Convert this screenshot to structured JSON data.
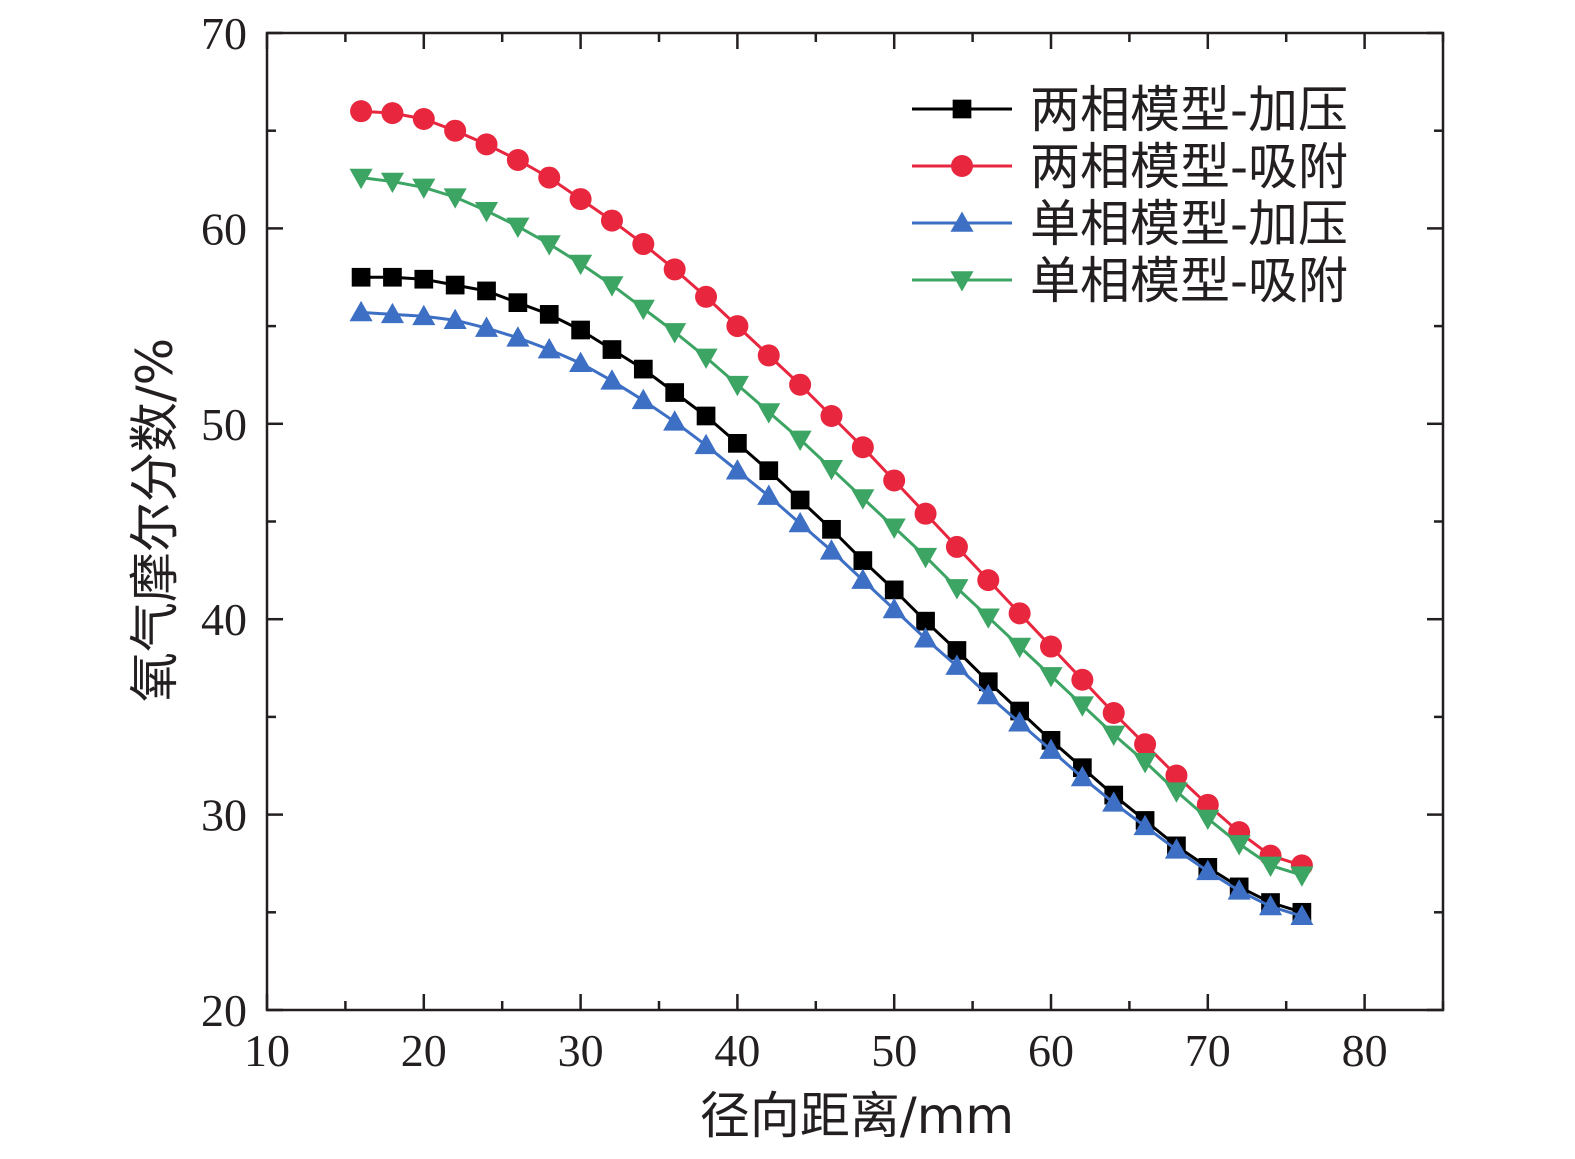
{
  "chart_data": {
    "type": "line",
    "title": "",
    "xlabel": "径向距离/mm",
    "ylabel": "氧气摩尔分数/%",
    "xlim": [
      10,
      85
    ],
    "ylim": [
      20,
      70
    ],
    "xticks": [
      10,
      20,
      30,
      40,
      50,
      60,
      70,
      80
    ],
    "yticks": [
      20,
      30,
      40,
      50,
      60,
      70
    ],
    "grid": false,
    "legend_position": "top-right",
    "x": [
      16,
      18,
      20,
      22,
      24,
      26,
      28,
      30,
      32,
      34,
      36,
      38,
      40,
      42,
      44,
      46,
      48,
      50,
      52,
      54,
      56,
      58,
      60,
      62,
      64,
      66,
      68,
      70,
      72,
      74,
      76
    ],
    "series": [
      {
        "name": "两相模型-加压",
        "color": "#000000",
        "marker": "square",
        "values": [
          57.5,
          57.5,
          57.4,
          57.1,
          56.8,
          56.2,
          55.6,
          54.8,
          53.8,
          52.8,
          51.6,
          50.4,
          49.0,
          47.6,
          46.1,
          44.6,
          43.0,
          41.5,
          39.9,
          38.4,
          36.8,
          35.3,
          33.8,
          32.4,
          31.0,
          29.7,
          28.4,
          27.3,
          26.3,
          25.5,
          25.0
        ]
      },
      {
        "name": "两相模型-吸附",
        "color": "#e8273f",
        "marker": "circle",
        "values": [
          66.0,
          65.9,
          65.6,
          65.0,
          64.3,
          63.5,
          62.6,
          61.5,
          60.4,
          59.2,
          57.9,
          56.5,
          55.0,
          53.5,
          52.0,
          50.4,
          48.8,
          47.1,
          45.4,
          43.7,
          42.0,
          40.3,
          38.6,
          36.9,
          35.2,
          33.6,
          32.0,
          30.5,
          29.1,
          27.9,
          27.4
        ]
      },
      {
        "name": "单相模型-加压",
        "color": "#3d6fc4",
        "marker": "triangle-up",
        "values": [
          55.7,
          55.6,
          55.5,
          55.3,
          54.9,
          54.4,
          53.8,
          53.1,
          52.2,
          51.2,
          50.1,
          48.9,
          47.6,
          46.3,
          44.9,
          43.5,
          42.0,
          40.5,
          39.0,
          37.6,
          36.1,
          34.7,
          33.3,
          31.9,
          30.6,
          29.4,
          28.2,
          27.1,
          26.1,
          25.3,
          24.8
        ]
      },
      {
        "name": "单相模型-吸附",
        "color": "#3da564",
        "marker": "triangle-down",
        "values": [
          62.6,
          62.4,
          62.1,
          61.6,
          60.9,
          60.1,
          59.2,
          58.2,
          57.1,
          55.9,
          54.7,
          53.4,
          52.0,
          50.6,
          49.2,
          47.7,
          46.2,
          44.7,
          43.2,
          41.6,
          40.1,
          38.6,
          37.1,
          35.6,
          34.1,
          32.7,
          31.2,
          29.8,
          28.5,
          27.4,
          26.9
        ]
      }
    ]
  }
}
